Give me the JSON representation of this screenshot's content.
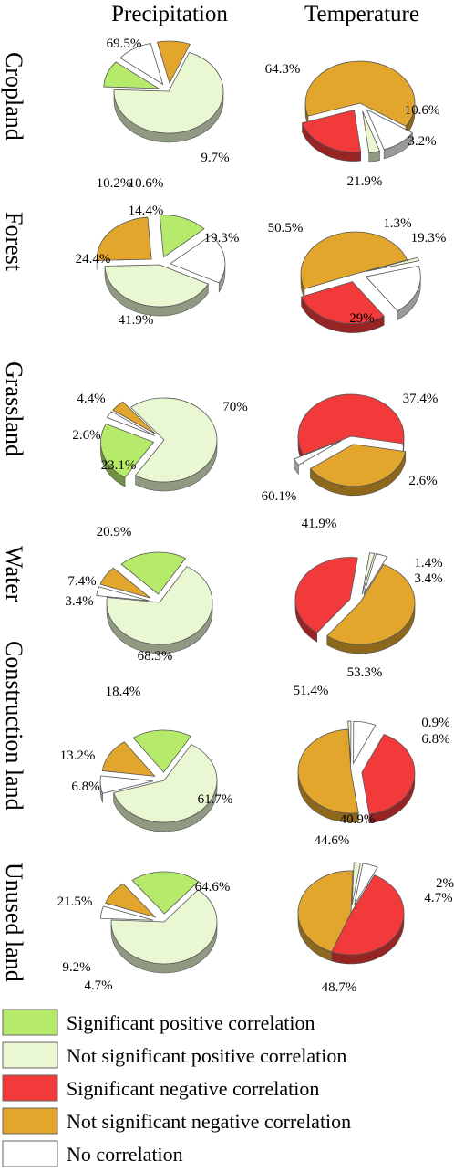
{
  "column_headers": [
    "Precipitation",
    "Temperature"
  ],
  "row_labels": [
    "Cropland",
    "Forest",
    "Grassland",
    "Water",
    "Construction land",
    "Unused land"
  ],
  "legend": {
    "items": [
      {
        "label": "Significant positive correlation",
        "color": "#b5ea6a"
      },
      {
        "label": "Not significant positive correlation",
        "color": "#e9f8d3"
      },
      {
        "label": "Significant negative correlation",
        "color": "#f23a3a"
      },
      {
        "label": "Not significant negative correlation",
        "color": "#e3a62c"
      },
      {
        "label": "No correlation",
        "color": "#ffffff"
      }
    ]
  },
  "chart_data": {
    "type": "pie",
    "categories": [
      "Significant positive correlation",
      "Not significant positive correlation",
      "Significant negative correlation",
      "Not significant negative correlation",
      "No correlation"
    ],
    "style": "3d-exploded",
    "charts": [
      {
        "row": "Cropland",
        "variable": "Precipitation",
        "slices": [
          {
            "category": "Not significant positive correlation",
            "label": "69.5%",
            "value": 69.5,
            "exploded": false
          },
          {
            "category": "Significant positive correlation",
            "label": "10.2%",
            "value": 10.2,
            "exploded": true
          },
          {
            "category": "No correlation",
            "label": "10.6%",
            "value": 10.6,
            "exploded": true
          },
          {
            "category": "Not significant negative correlation",
            "label": "9.7%",
            "value": 9.7,
            "exploded": true
          }
        ]
      },
      {
        "row": "Cropland",
        "variable": "Temperature",
        "slices": [
          {
            "category": "Not significant negative correlation",
            "label": "64.3%",
            "value": 64.3,
            "exploded": false
          },
          {
            "category": "No correlation",
            "label": "10.6%",
            "value": 10.6,
            "exploded": true
          },
          {
            "category": "Not significant positive correlation",
            "label": "3.2%",
            "value": 3.2,
            "exploded": true
          },
          {
            "category": "Significant negative correlation",
            "label": "21.9%",
            "value": 21.9,
            "exploded": true
          }
        ]
      },
      {
        "row": "Forest",
        "variable": "Precipitation",
        "slices": [
          {
            "category": "Significant positive correlation",
            "label": "14.4%",
            "value": 14.4,
            "exploded": true
          },
          {
            "category": "No correlation",
            "label": "19.3%",
            "value": 19.3,
            "exploded": true
          },
          {
            "category": "Not significant positive correlation",
            "label": "41.9%",
            "value": 41.9,
            "exploded": false
          },
          {
            "category": "Not significant negative correlation",
            "label": "24.4%",
            "value": 24.4,
            "exploded": true
          }
        ]
      },
      {
        "row": "Forest",
        "variable": "Temperature",
        "slices": [
          {
            "category": "Not significant negative correlation",
            "label": "50.5%",
            "value": 50.5,
            "exploded": false
          },
          {
            "category": "Not significant positive correlation",
            "label": "1.3%",
            "value": 1.3,
            "exploded": true
          },
          {
            "category": "No correlation",
            "label": "19.3%",
            "value": 19.3,
            "exploded": true
          },
          {
            "category": "Significant negative correlation",
            "label": "29%",
            "value": 29.0,
            "exploded": true
          }
        ]
      },
      {
        "row": "Grassland",
        "variable": "Precipitation",
        "slices": [
          {
            "category": "Not significant positive correlation",
            "label": "70%",
            "value": 70.0,
            "exploded": false
          },
          {
            "category": "Significant positive correlation",
            "label": "23.1%",
            "value": 23.1,
            "exploded": true
          },
          {
            "category": "No correlation",
            "label": "2.6%",
            "value": 2.6,
            "exploded": true
          },
          {
            "category": "Not significant negative correlation",
            "label": "4.4%",
            "value": 4.4,
            "exploded": true
          }
        ]
      },
      {
        "row": "Grassland",
        "variable": "Temperature",
        "slices": [
          {
            "category": "Not significant negative correlation",
            "label": "37.4%",
            "value": 37.4,
            "exploded": true
          },
          {
            "category": "No correlation",
            "label": "2.6%",
            "value": 2.6,
            "exploded": true
          },
          {
            "category": "Significant negative correlation",
            "label": "60.1%",
            "value": 60.1,
            "exploded": false
          }
        ]
      },
      {
        "row": "Water",
        "variable": "Precipitation",
        "slices": [
          {
            "category": "Not significant positive correlation",
            "label": "68.3%",
            "value": 68.3,
            "exploded": false
          },
          {
            "category": "No correlation",
            "label": "3.4%",
            "value": 3.4,
            "exploded": true
          },
          {
            "category": "Not significant negative correlation",
            "label": "7.4%",
            "value": 7.4,
            "exploded": true
          },
          {
            "category": "Significant positive correlation",
            "label": "20.9%",
            "value": 20.9,
            "exploded": true
          }
        ]
      },
      {
        "row": "Water",
        "variable": "Temperature",
        "slices": [
          {
            "category": "Not significant positive correlation",
            "label": "1.4%",
            "value": 1.4,
            "exploded": true
          },
          {
            "category": "No correlation",
            "label": "3.4%",
            "value": 3.4,
            "exploded": true
          },
          {
            "category": "Not significant negative correlation",
            "label": "53.3%",
            "value": 53.3,
            "exploded": false
          },
          {
            "category": "Significant negative correlation",
            "label": "41.9%",
            "value": 41.9,
            "exploded": true
          }
        ]
      },
      {
        "row": "Construction land",
        "variable": "Precipitation",
        "slices": [
          {
            "category": "Not significant positive correlation",
            "label": "61.7%",
            "value": 61.7,
            "exploded": false
          },
          {
            "category": "No correlation",
            "label": "6.8%",
            "value": 6.8,
            "exploded": true
          },
          {
            "category": "Not significant negative correlation",
            "label": "13.2%",
            "value": 13.2,
            "exploded": true
          },
          {
            "category": "Significant positive correlation",
            "label": "18.4%",
            "value": 18.4,
            "exploded": true
          }
        ]
      },
      {
        "row": "Construction land",
        "variable": "Temperature",
        "slices": [
          {
            "category": "Not significant positive correlation",
            "label": "0.9%",
            "value": 0.9,
            "exploded": true
          },
          {
            "category": "No correlation",
            "label": "6.8%",
            "value": 6.8,
            "exploded": true
          },
          {
            "category": "Significant negative correlation",
            "label": "40.9%",
            "value": 40.9,
            "exploded": true
          },
          {
            "category": "Not significant negative correlation",
            "label": "51.4%",
            "value": 51.4,
            "exploded": false
          }
        ]
      },
      {
        "row": "Unused land",
        "variable": "Precipitation",
        "slices": [
          {
            "category": "Not significant positive correlation",
            "label": "64.6%",
            "value": 64.6,
            "exploded": false
          },
          {
            "category": "No correlation",
            "label": "4.7%",
            "value": 4.7,
            "exploded": true
          },
          {
            "category": "Not significant negative correlation",
            "label": "9.2%",
            "value": 9.2,
            "exploded": true
          },
          {
            "category": "Significant positive correlation",
            "label": "21.5%",
            "value": 21.5,
            "exploded": true
          }
        ]
      },
      {
        "row": "Unused land",
        "variable": "Temperature",
        "slices": [
          {
            "category": "Not significant positive correlation",
            "label": "2%",
            "value": 2.0,
            "exploded": true
          },
          {
            "category": "No correlation",
            "label": "4.7%",
            "value": 4.7,
            "exploded": true
          },
          {
            "category": "Significant negative correlation",
            "label": "48.7%",
            "value": 48.7,
            "exploded": false
          },
          {
            "category": "Not significant negative correlation",
            "label": "44.6%",
            "value": 44.6,
            "exploded": false
          }
        ]
      }
    ]
  }
}
